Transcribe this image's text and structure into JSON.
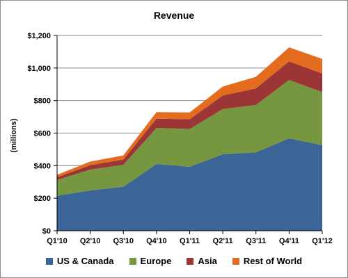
{
  "chart_data": {
    "type": "area",
    "stacked": true,
    "title": "Revenue",
    "ylabel": "(millions)",
    "xlabel": "",
    "categories": [
      "Q1'10",
      "Q2'10",
      "Q3'10",
      "Q4'10",
      "Q1'11",
      "Q2'11",
      "Q3'11",
      "Q4'11",
      "Q1'12"
    ],
    "ylim": [
      0,
      1200
    ],
    "yticks": [
      0,
      200,
      400,
      600,
      800,
      1000,
      1200
    ],
    "ytick_labels": [
      "$0",
      "$200",
      "$400",
      "$600",
      "$800",
      "$1,000",
      "$1,200"
    ],
    "grid": true,
    "legend_position": "bottom",
    "series": [
      {
        "name": "US & Canada",
        "color": "#3a6596",
        "values": [
          215,
          248,
          270,
          410,
          393,
          470,
          482,
          568,
          525
        ]
      },
      {
        "name": "Europe",
        "color": "#76963f",
        "values": [
          97,
          128,
          135,
          222,
          232,
          278,
          291,
          358,
          327
        ]
      },
      {
        "name": "Asia",
        "color": "#9c3636",
        "values": [
          17,
          27,
          33,
          57,
          60,
          83,
          102,
          115,
          114
        ]
      },
      {
        "name": "Rest of World",
        "color": "#e46c1f",
        "values": [
          15,
          22,
          25,
          40,
          42,
          55,
          71,
          86,
          90
        ]
      }
    ]
  }
}
